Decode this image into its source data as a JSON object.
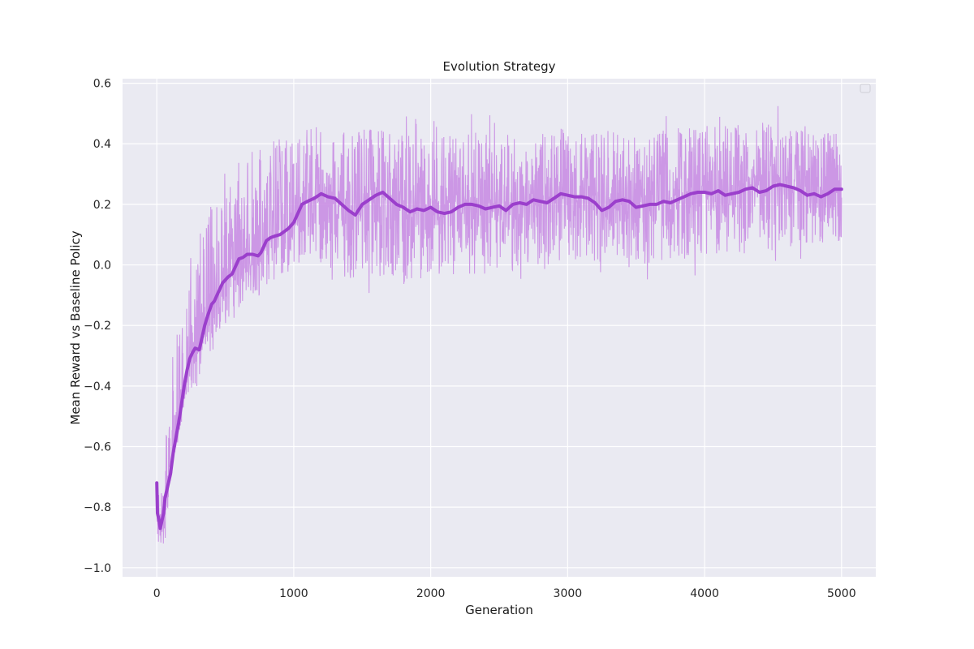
{
  "chart_data": {
    "type": "line",
    "title": "Evolution Strategy",
    "xlabel": "Generation",
    "ylabel": "Mean Reward vs Baseline Policy",
    "xlim": [
      -250,
      5250
    ],
    "ylim": [
      -1.03,
      0.615
    ],
    "x_ticks": [
      0,
      1000,
      2000,
      3000,
      4000,
      5000
    ],
    "x_tick_labels": [
      "0",
      "1000",
      "2000",
      "3000",
      "4000",
      "5000"
    ],
    "y_ticks": [
      -1.0,
      -0.8,
      -0.6,
      -0.4,
      -0.2,
      0.0,
      0.2,
      0.4,
      0.6
    ],
    "y_tick_labels": [
      "−1.0",
      "−0.8",
      "−0.6",
      "−0.4",
      "−0.2",
      "0.0",
      "0.2",
      "0.4",
      "0.6"
    ],
    "grid": true,
    "legend": {
      "position": "top-right",
      "entries": []
    },
    "background_color": "#eaeaf2",
    "series": [
      {
        "role": "raw",
        "color": "#c98ee3",
        "band": {
          "x": [
            0,
            25,
            50,
            75,
            100,
            150,
            200,
            250,
            300,
            350,
            400,
            450,
            500,
            550,
            600,
            650,
            700,
            750,
            800,
            850,
            900,
            950,
            1000,
            1050,
            1100,
            1200,
            1300,
            1400,
            1500,
            1600,
            1700,
            1800,
            1900,
            2000,
            2200,
            2400,
            2600,
            2800,
            3000,
            3200,
            3400,
            3600,
            3800,
            4000,
            4200,
            4400,
            4600,
            4800,
            5000
          ],
          "lower": [
            -0.92,
            -0.96,
            -0.96,
            -0.84,
            -0.74,
            -0.6,
            -0.48,
            -0.45,
            -0.4,
            -0.28,
            -0.32,
            -0.26,
            -0.22,
            -0.2,
            -0.15,
            -0.12,
            -0.1,
            -0.12,
            -0.08,
            -0.05,
            -0.07,
            -0.03,
            0.0,
            0.02,
            0.02,
            0.0,
            -0.02,
            -0.05,
            -0.04,
            -0.04,
            -0.05,
            -0.06,
            -0.05,
            -0.04,
            -0.03,
            -0.03,
            -0.02,
            -0.02,
            -0.01,
            0.0,
            0.0,
            0.0,
            0.01,
            0.02,
            0.03,
            0.04,
            0.05,
            0.06,
            0.08
          ],
          "upper": [
            -0.72,
            -0.7,
            -0.64,
            -0.5,
            -0.34,
            -0.2,
            -0.08,
            0.0,
            0.1,
            0.18,
            0.2,
            0.24,
            0.3,
            0.32,
            0.34,
            0.36,
            0.38,
            0.4,
            0.4,
            0.42,
            0.42,
            0.44,
            0.44,
            0.46,
            0.46,
            0.46,
            0.46,
            0.44,
            0.46,
            0.46,
            0.44,
            0.44,
            0.44,
            0.44,
            0.44,
            0.44,
            0.44,
            0.44,
            0.46,
            0.44,
            0.46,
            0.44,
            0.46,
            0.46,
            0.48,
            0.48,
            0.48,
            0.46,
            0.44
          ]
        }
      },
      {
        "role": "smoothed",
        "color": "#9b3fcc",
        "points": [
          [
            0,
            -0.72
          ],
          [
            5,
            -0.82
          ],
          [
            15,
            -0.84
          ],
          [
            25,
            -0.87
          ],
          [
            35,
            -0.85
          ],
          [
            50,
            -0.82
          ],
          [
            60,
            -0.77
          ],
          [
            80,
            -0.73
          ],
          [
            100,
            -0.69
          ],
          [
            120,
            -0.62
          ],
          [
            140,
            -0.57
          ],
          [
            160,
            -0.52
          ],
          [
            180,
            -0.46
          ],
          [
            200,
            -0.4
          ],
          [
            220,
            -0.35
          ],
          [
            240,
            -0.31
          ],
          [
            260,
            -0.29
          ],
          [
            280,
            -0.275
          ],
          [
            310,
            -0.28
          ],
          [
            330,
            -0.24
          ],
          [
            350,
            -0.2
          ],
          [
            370,
            -0.17
          ],
          [
            400,
            -0.13
          ],
          [
            420,
            -0.12
          ],
          [
            450,
            -0.09
          ],
          [
            480,
            -0.06
          ],
          [
            520,
            -0.04
          ],
          [
            550,
            -0.03
          ],
          [
            580,
            0.0
          ],
          [
            600,
            0.02
          ],
          [
            630,
            0.025
          ],
          [
            660,
            0.035
          ],
          [
            700,
            0.035
          ],
          [
            740,
            0.03
          ],
          [
            760,
            0.04
          ],
          [
            780,
            0.06
          ],
          [
            800,
            0.08
          ],
          [
            830,
            0.09
          ],
          [
            860,
            0.095
          ],
          [
            900,
            0.1
          ],
          [
            930,
            0.11
          ],
          [
            960,
            0.12
          ],
          [
            1000,
            0.14
          ],
          [
            1030,
            0.17
          ],
          [
            1060,
            0.2
          ],
          [
            1100,
            0.21
          ],
          [
            1150,
            0.22
          ],
          [
            1200,
            0.235
          ],
          [
            1250,
            0.225
          ],
          [
            1300,
            0.22
          ],
          [
            1350,
            0.2
          ],
          [
            1400,
            0.18
          ],
          [
            1450,
            0.165
          ],
          [
            1500,
            0.2
          ],
          [
            1550,
            0.215
          ],
          [
            1600,
            0.23
          ],
          [
            1650,
            0.24
          ],
          [
            1700,
            0.22
          ],
          [
            1750,
            0.2
          ],
          [
            1800,
            0.19
          ],
          [
            1850,
            0.175
          ],
          [
            1900,
            0.185
          ],
          [
            1950,
            0.18
          ],
          [
            2000,
            0.19
          ],
          [
            2050,
            0.175
          ],
          [
            2100,
            0.17
          ],
          [
            2150,
            0.175
          ],
          [
            2200,
            0.19
          ],
          [
            2250,
            0.2
          ],
          [
            2300,
            0.2
          ],
          [
            2350,
            0.195
          ],
          [
            2400,
            0.185
          ],
          [
            2450,
            0.19
          ],
          [
            2500,
            0.195
          ],
          [
            2550,
            0.18
          ],
          [
            2600,
            0.2
          ],
          [
            2650,
            0.205
          ],
          [
            2700,
            0.2
          ],
          [
            2750,
            0.215
          ],
          [
            2800,
            0.21
          ],
          [
            2850,
            0.205
          ],
          [
            2900,
            0.22
          ],
          [
            2950,
            0.235
          ],
          [
            3000,
            0.23
          ],
          [
            3050,
            0.225
          ],
          [
            3100,
            0.225
          ],
          [
            3150,
            0.22
          ],
          [
            3200,
            0.205
          ],
          [
            3250,
            0.18
          ],
          [
            3300,
            0.19
          ],
          [
            3350,
            0.21
          ],
          [
            3400,
            0.215
          ],
          [
            3450,
            0.21
          ],
          [
            3500,
            0.19
          ],
          [
            3550,
            0.195
          ],
          [
            3600,
            0.2
          ],
          [
            3650,
            0.2
          ],
          [
            3700,
            0.21
          ],
          [
            3750,
            0.205
          ],
          [
            3800,
            0.215
          ],
          [
            3850,
            0.225
          ],
          [
            3900,
            0.235
          ],
          [
            3950,
            0.24
          ],
          [
            4000,
            0.24
          ],
          [
            4050,
            0.235
          ],
          [
            4100,
            0.245
          ],
          [
            4150,
            0.23
          ],
          [
            4200,
            0.235
          ],
          [
            4250,
            0.24
          ],
          [
            4300,
            0.25
          ],
          [
            4350,
            0.255
          ],
          [
            4400,
            0.24
          ],
          [
            4450,
            0.245
          ],
          [
            4500,
            0.26
          ],
          [
            4550,
            0.265
          ],
          [
            4600,
            0.26
          ],
          [
            4650,
            0.255
          ],
          [
            4700,
            0.245
          ],
          [
            4750,
            0.23
          ],
          [
            4800,
            0.235
          ],
          [
            4850,
            0.225
          ],
          [
            4900,
            0.235
          ],
          [
            4950,
            0.25
          ],
          [
            5000,
            0.25
          ]
        ]
      }
    ]
  }
}
